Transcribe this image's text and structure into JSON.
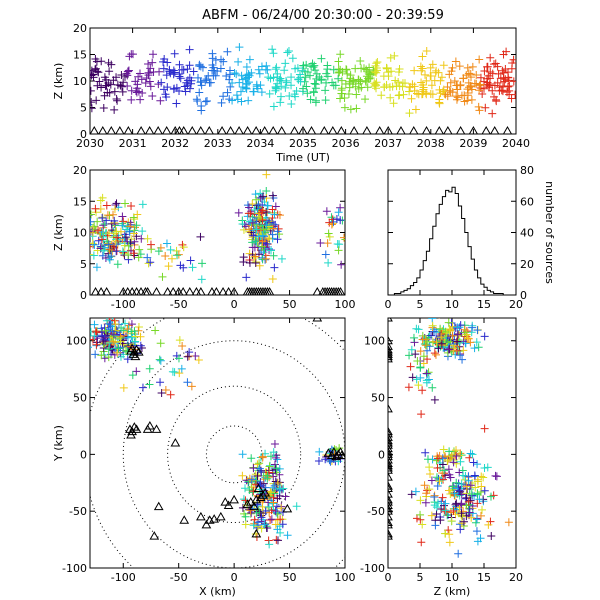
{
  "title": "ABFM - 06/24/00 20:30:00 - 20:39:59",
  "colors": {
    "axis": "#000000",
    "background": "#ffffff"
  },
  "color_scale": [
    "#3c0060",
    "#6a1a9a",
    "#2a2acc",
    "#1f6fe0",
    "#18b0e8",
    "#20d8c8",
    "#20d070",
    "#78d828",
    "#d8e020",
    "#f0c818",
    "#f08a18",
    "#e02818"
  ],
  "chart_data": [
    {
      "id": "time-height",
      "type": "scatter",
      "xlabel": "Time (UT)",
      "ylabel": "Z (km)",
      "xlim": [
        2030,
        2040
      ],
      "ylim": [
        0,
        20
      ],
      "xticks": [
        "2030",
        "2031",
        "2032",
        "2033",
        "2034",
        "2035",
        "2036",
        "2037",
        "2038",
        "2039",
        "2040"
      ],
      "yticks": [
        "0",
        "5",
        "10",
        "15",
        "20"
      ],
      "marker": "plus, colored by time",
      "z_mean": 10,
      "z_spread": 2.4,
      "station_markers": "triangles at Z = 0",
      "station_times": [
        2030.1,
        2030.3,
        2030.5,
        2030.7,
        2030.9,
        2031.2,
        2031.4,
        2031.6,
        2031.8,
        2032.0,
        2032.1,
        2032.2,
        2032.4,
        2032.6,
        2032.8,
        2033.1,
        2033.3,
        2033.5,
        2033.7,
        2033.9,
        2034.1,
        2034.3,
        2034.5,
        2034.8,
        2035.0,
        2035.2,
        2035.5,
        2035.7,
        2035.9,
        2036.2,
        2036.5,
        2036.8,
        2037.0,
        2037.3,
        2037.6,
        2037.9,
        2038.2,
        2038.4,
        2038.7,
        2039.0,
        2039.3,
        2039.5,
        2039.8
      ]
    },
    {
      "id": "x-height",
      "type": "scatter",
      "xlabel": "",
      "ylabel": "Z (km)",
      "xlim": [
        -130,
        100
      ],
      "ylim": [
        0,
        20
      ],
      "xticks": [
        "-100",
        "-50",
        "0",
        "50",
        "100"
      ],
      "yticks": [
        "0",
        "5",
        "10",
        "15",
        "20"
      ],
      "clusters": [
        {
          "x": -108,
          "x_spread": 14,
          "z": 9.5,
          "z_spread": 2.4,
          "n": 170
        },
        {
          "x": -55,
          "x_spread": 18,
          "z": 6.5,
          "z_spread": 1.8,
          "n": 25
        },
        {
          "x": 25,
          "x_spread": 8,
          "z": 10.5,
          "z_spread": 3.0,
          "n": 200
        },
        {
          "x": 93,
          "x_spread": 5,
          "z": 10,
          "z_spread": 2.2,
          "n": 25
        }
      ],
      "station_x": [
        -125,
        -120,
        -115,
        -100,
        -96,
        -92,
        -88,
        -84,
        -80,
        -78,
        -70,
        -60,
        -55,
        -50,
        -46,
        -40,
        -34,
        -30,
        -20,
        -16,
        -10,
        -5,
        0,
        12,
        14,
        16,
        18,
        20,
        22,
        24,
        26,
        28,
        30,
        32,
        75,
        80,
        82,
        84,
        86,
        88,
        90,
        92,
        94,
        96
      ]
    },
    {
      "id": "z-histogram",
      "type": "histogram",
      "xlabel": "",
      "ylabel": "number of sources",
      "xlim": [
        0,
        20
      ],
      "ylim": [
        0,
        80
      ],
      "xticks": [
        "0",
        "5",
        "10",
        "15",
        "20"
      ],
      "yticks": [
        "0",
        "20",
        "40",
        "60",
        "80"
      ],
      "bin_width": 0.5,
      "bin_start": 1.0,
      "counts": [
        1,
        1,
        2,
        3,
        4,
        6,
        8,
        11,
        16,
        22,
        28,
        36,
        44,
        52,
        58,
        63,
        67,
        66,
        69,
        65,
        57,
        49,
        40,
        31,
        23,
        16,
        11,
        7,
        5,
        3,
        2,
        1,
        1,
        1,
        0,
        0,
        0,
        0
      ]
    },
    {
      "id": "plan-view",
      "type": "scatter",
      "xlabel": "X (km)",
      "ylabel": "Y (km)",
      "xlim": [
        -130,
        100
      ],
      "ylim": [
        -100,
        120
      ],
      "xticks": [
        "-100",
        "-50",
        "0",
        "50",
        "100"
      ],
      "yticks": [
        "-100",
        "-50",
        "0",
        "50",
        "100"
      ],
      "range_rings_km": [
        25,
        60,
        100,
        135
      ],
      "clusters": [
        {
          "x": -108,
          "x_spread": 12,
          "y": 102,
          "y_spread": 8,
          "n": 150
        },
        {
          "x": -65,
          "x_spread": 25,
          "y": 75,
          "y_spread": 18,
          "n": 30
        },
        {
          "x": 28,
          "x_spread": 10,
          "y": -35,
          "y_spread": 20,
          "n": 200
        },
        {
          "x": 90,
          "x_spread": 5,
          "y": -2,
          "y_spread": 4,
          "n": 25
        }
      ],
      "stations": [
        [
          -92,
          93
        ],
        [
          -90,
          90
        ],
        [
          -88,
          92
        ],
        [
          -91,
          88
        ],
        [
          -86,
          90
        ],
        [
          -89,
          86
        ],
        [
          -93,
          91
        ],
        [
          -94,
          22
        ],
        [
          -92,
          20
        ],
        [
          -90,
          24
        ],
        [
          -88,
          22
        ],
        [
          -93,
          17
        ],
        [
          -78,
          22
        ],
        [
          -76,
          25
        ],
        [
          -70,
          22
        ],
        [
          -53,
          10
        ],
        [
          -25,
          -62
        ],
        [
          -22,
          -58
        ],
        [
          -18,
          -57
        ],
        [
          -12,
          -55
        ],
        [
          -8,
          -42
        ],
        [
          -5,
          -45
        ],
        [
          0,
          -40
        ],
        [
          12,
          -44
        ],
        [
          15,
          -42
        ],
        [
          18,
          -46
        ],
        [
          20,
          -40
        ],
        [
          24,
          -38
        ],
        [
          26,
          -36
        ],
        [
          28,
          -34
        ],
        [
          22,
          -30
        ],
        [
          48,
          -48
        ],
        [
          85,
          1
        ],
        [
          88,
          -1
        ],
        [
          90,
          2
        ],
        [
          92,
          -2
        ],
        [
          94,
          0
        ],
        [
          96,
          2
        ],
        [
          97,
          -1
        ],
        [
          -68,
          -46
        ],
        [
          -72,
          -72
        ],
        [
          -45,
          -58
        ],
        [
          -30,
          -55
        ],
        [
          75,
          120
        ],
        [
          20,
          -70
        ]
      ]
    },
    {
      "id": "z-y",
      "type": "scatter",
      "xlabel": "Z (km)",
      "ylabel": "",
      "xlim": [
        0,
        20
      ],
      "ylim": [
        -100,
        120
      ],
      "xticks": [
        "0",
        "5",
        "10",
        "15",
        "20"
      ],
      "clusters": [
        {
          "z": 9.5,
          "z_spread": 2.2,
          "y": 102,
          "y_spread": 8,
          "n": 150
        },
        {
          "z": 5.5,
          "z_spread": 1.2,
          "y": 70,
          "y_spread": 15,
          "n": 30
        },
        {
          "z": 10.5,
          "z_spread": 2.8,
          "y": -35,
          "y_spread": 20,
          "n": 200
        },
        {
          "z": 10,
          "z_spread": 2,
          "y": -2,
          "y_spread": 4,
          "n": 25
        }
      ],
      "station_y": [
        120,
        100,
        95,
        92,
        90,
        88,
        86,
        84,
        40,
        20,
        18,
        15,
        12,
        10,
        8,
        5,
        2,
        0,
        -2,
        -5,
        -8,
        -10,
        -12,
        -14,
        -20,
        -28,
        -30,
        -35,
        -40,
        -42,
        -45,
        -48,
        -50,
        -55,
        -60,
        -62,
        -70,
        -72
      ]
    }
  ]
}
